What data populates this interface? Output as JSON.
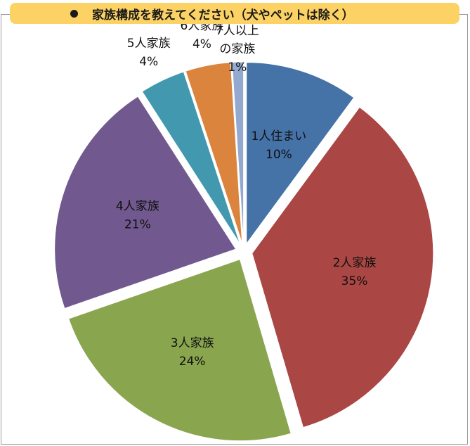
{
  "title": "家族構成を教えてください（犬やペットは除く）",
  "colors": {
    "title_bg": "#fdd264",
    "frame_border": "#9a9a9a"
  },
  "chart_data": {
    "type": "pie",
    "title": "家族構成を教えてください（犬やペットは除く）",
    "exploded": true,
    "slices": [
      {
        "label": "1人住まい",
        "label_lines": [
          "1人住まい"
        ],
        "value": 10,
        "display": "10%",
        "color": "#4572a7"
      },
      {
        "label": "2人家族",
        "label_lines": [
          "2人家族"
        ],
        "value": 35,
        "display": "35%",
        "color": "#aa4643"
      },
      {
        "label": "3人家族",
        "label_lines": [
          "3人家族"
        ],
        "value": 24,
        "display": "24%",
        "color": "#89a54e"
      },
      {
        "label": "4人家族",
        "label_lines": [
          "4人家族"
        ],
        "value": 21,
        "display": "21%",
        "color": "#71588f"
      },
      {
        "label": "5人家族",
        "label_lines": [
          "5人家族"
        ],
        "value": 4,
        "display": "4%",
        "color": "#4198af"
      },
      {
        "label": "6人家族",
        "label_lines": [
          "6人家族"
        ],
        "value": 4,
        "display": "4%",
        "color": "#db843d"
      },
      {
        "label": "7人以上の家族",
        "label_lines": [
          "7人以上",
          "の家族"
        ],
        "value": 1,
        "display": "1%",
        "color": "#93a9cf"
      }
    ]
  }
}
